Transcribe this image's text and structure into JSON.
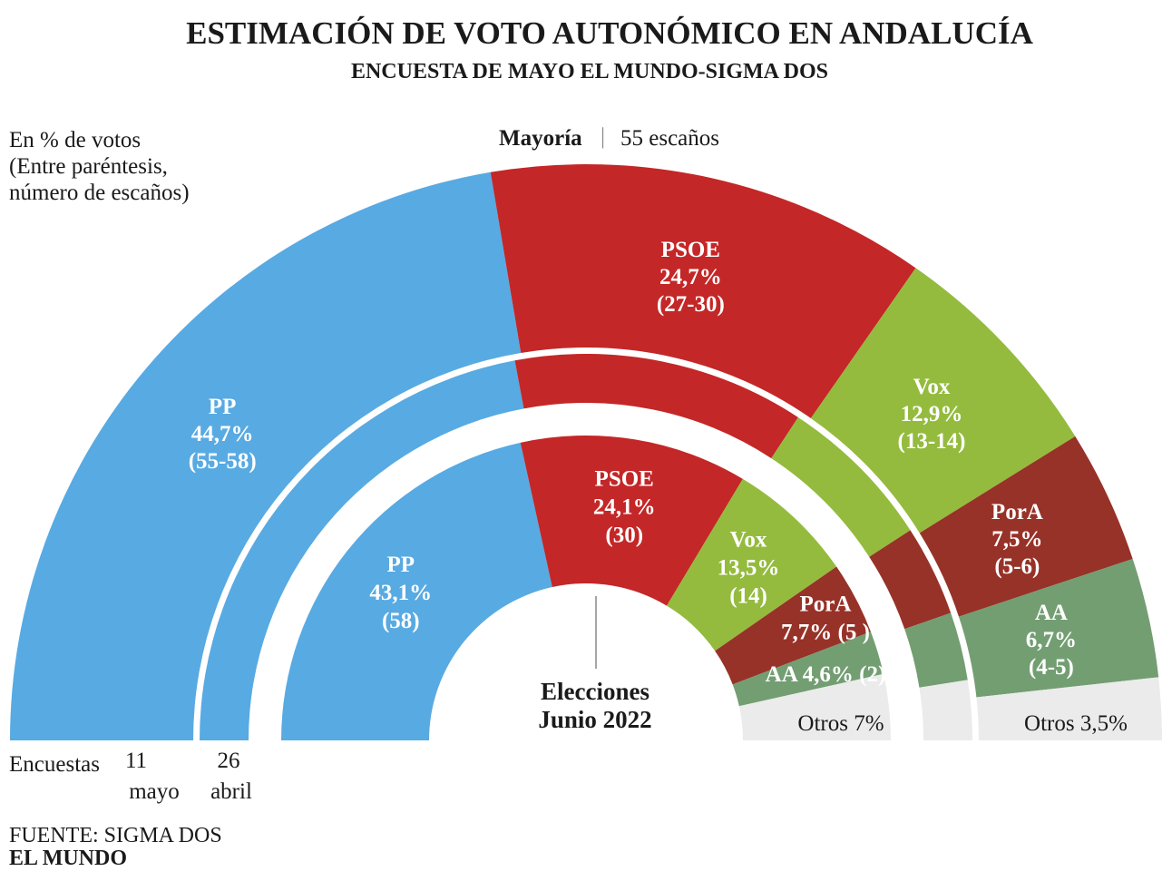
{
  "header": {
    "title": "ESTIMACIÓN DE VOTO AUTONÓMICO EN ANDALUCÍA",
    "subtitle": "ENCUESTA DE MAYO EL MUNDO-SIGMA DOS"
  },
  "notes": {
    "unit_line1": "En % de votos",
    "unit_line2": "(Entre paréntesis,",
    "unit_line3": "número de escaños)",
    "majority_label": "Mayoría",
    "majority_sep": "|",
    "majority_value": "55 escaños",
    "center_line1": "Elecciones",
    "center_line2": "Junio 2022",
    "axis_encuestas": "Encuestas",
    "axis_11": "11",
    "axis_mayo": "mayo",
    "axis_26": "26",
    "axis_abril": "abril"
  },
  "footer": {
    "source": "FUENTE: SIGMA DOS",
    "brand": "EL MUNDO"
  },
  "colors": {
    "PP": "#58aae2",
    "PSOE": "#c42727",
    "Vox": "#94bb3e",
    "PorA": "#973228",
    "AA": "#739e72",
    "Otros": "#ebebeb"
  },
  "chart_data": {
    "type": "pie",
    "subtype": "semicircle-parliament-rings",
    "majority_seats": 55,
    "rings": [
      {
        "name": "11 mayo",
        "slices": [
          {
            "party": "PP",
            "value": 44.7,
            "label_lines": [
              "PP",
              "44,7%",
              "(55-58)"
            ]
          },
          {
            "party": "PSOE",
            "value": 24.7,
            "label_lines": [
              "PSOE",
              "24,7%",
              "(27-30)"
            ]
          },
          {
            "party": "Vox",
            "value": 12.9,
            "label_lines": [
              "Vox",
              "12,9%",
              "(13-14)"
            ]
          },
          {
            "party": "PorA",
            "value": 7.5,
            "label_lines": [
              "PorA",
              "7,5%",
              "(5-6)"
            ]
          },
          {
            "party": "AA",
            "value": 6.7,
            "label_lines": [
              "AA",
              "6,7%",
              "(4-5)"
            ]
          },
          {
            "party": "Otros",
            "value": 3.5,
            "label_lines": [
              "Otros 3,5%"
            ]
          }
        ]
      },
      {
        "name": "26 abril",
        "slices": [
          {
            "party": "PP",
            "value": 44.1
          },
          {
            "party": "PSOE",
            "value": 24.4
          },
          {
            "party": "Vox",
            "value": 13.2
          },
          {
            "party": "PorA",
            "value": 7.6
          },
          {
            "party": "AA",
            "value": 5.7
          },
          {
            "party": "Otros",
            "value": 5.0
          }
        ]
      },
      {
        "name": "Elecciones Junio 2022",
        "slices": [
          {
            "party": "PP",
            "value": 43.1,
            "label_lines": [
              "PP",
              "43,1%",
              "(58)"
            ]
          },
          {
            "party": "PSOE",
            "value": 24.1,
            "label_lines": [
              "PSOE",
              "24,1%",
              "(30)"
            ]
          },
          {
            "party": "Vox",
            "value": 13.5,
            "label_lines": [
              "Vox",
              "13,5%",
              "(14)"
            ]
          },
          {
            "party": "PorA",
            "value": 7.7,
            "label_lines": [
              "PorA",
              "7,7% (5 )"
            ]
          },
          {
            "party": "AA",
            "value": 4.6,
            "label_lines": [
              "AA 4,6% (2)"
            ]
          },
          {
            "party": "Otros",
            "value": 7.0,
            "label_lines": [
              "Otros 7%"
            ]
          }
        ]
      }
    ]
  }
}
